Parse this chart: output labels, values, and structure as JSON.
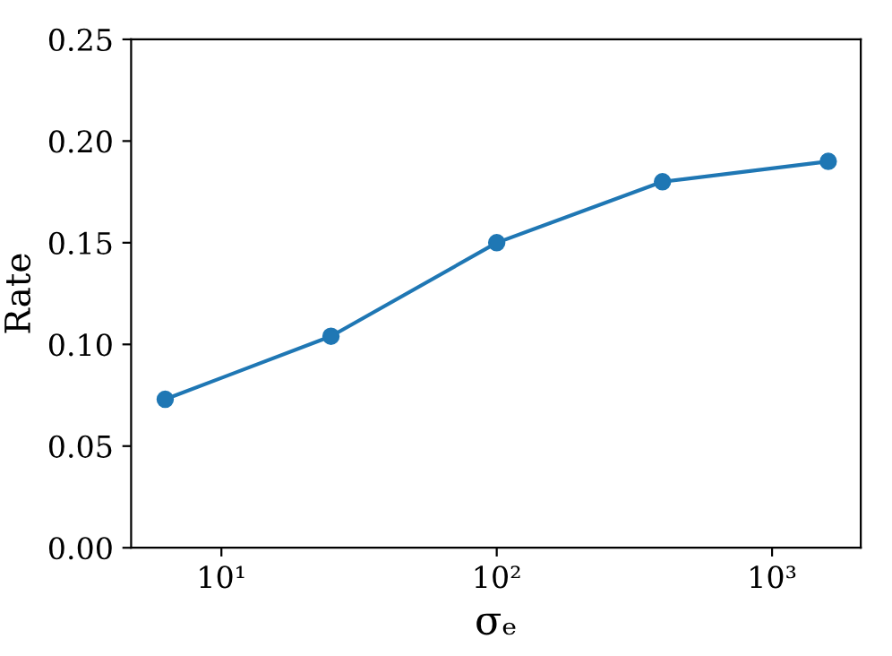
{
  "chart_data": {
    "type": "line",
    "xlabel": "σₑ",
    "ylabel": "Rate",
    "x": [
      6.25,
      25,
      100,
      400,
      1600
    ],
    "series": [
      {
        "color": "#1f77b4",
        "values": [
          0.073,
          0.104,
          0.15,
          0.18,
          0.19
        ]
      }
    ],
    "log": "x",
    "marker": "circle",
    "line_style": "solid",
    "grid": false,
    "xlim": [
      4.7,
      2100
    ],
    "xticks": [
      {
        "value": 10,
        "label": "10¹"
      },
      {
        "value": 100,
        "label": "10²"
      },
      {
        "value": 1000,
        "label": "10³"
      }
    ],
    "ylim": [
      0,
      0.25
    ],
    "yticks": [
      {
        "value": 0,
        "label": "0.00"
      },
      {
        "value": 0.05,
        "label": "0.05"
      },
      {
        "value": 0.1,
        "label": "0.10"
      },
      {
        "value": 0.15,
        "label": "0.15"
      },
      {
        "value": 0.2,
        "label": "0.20"
      },
      {
        "value": 0.25,
        "label": "0.25"
      }
    ]
  }
}
